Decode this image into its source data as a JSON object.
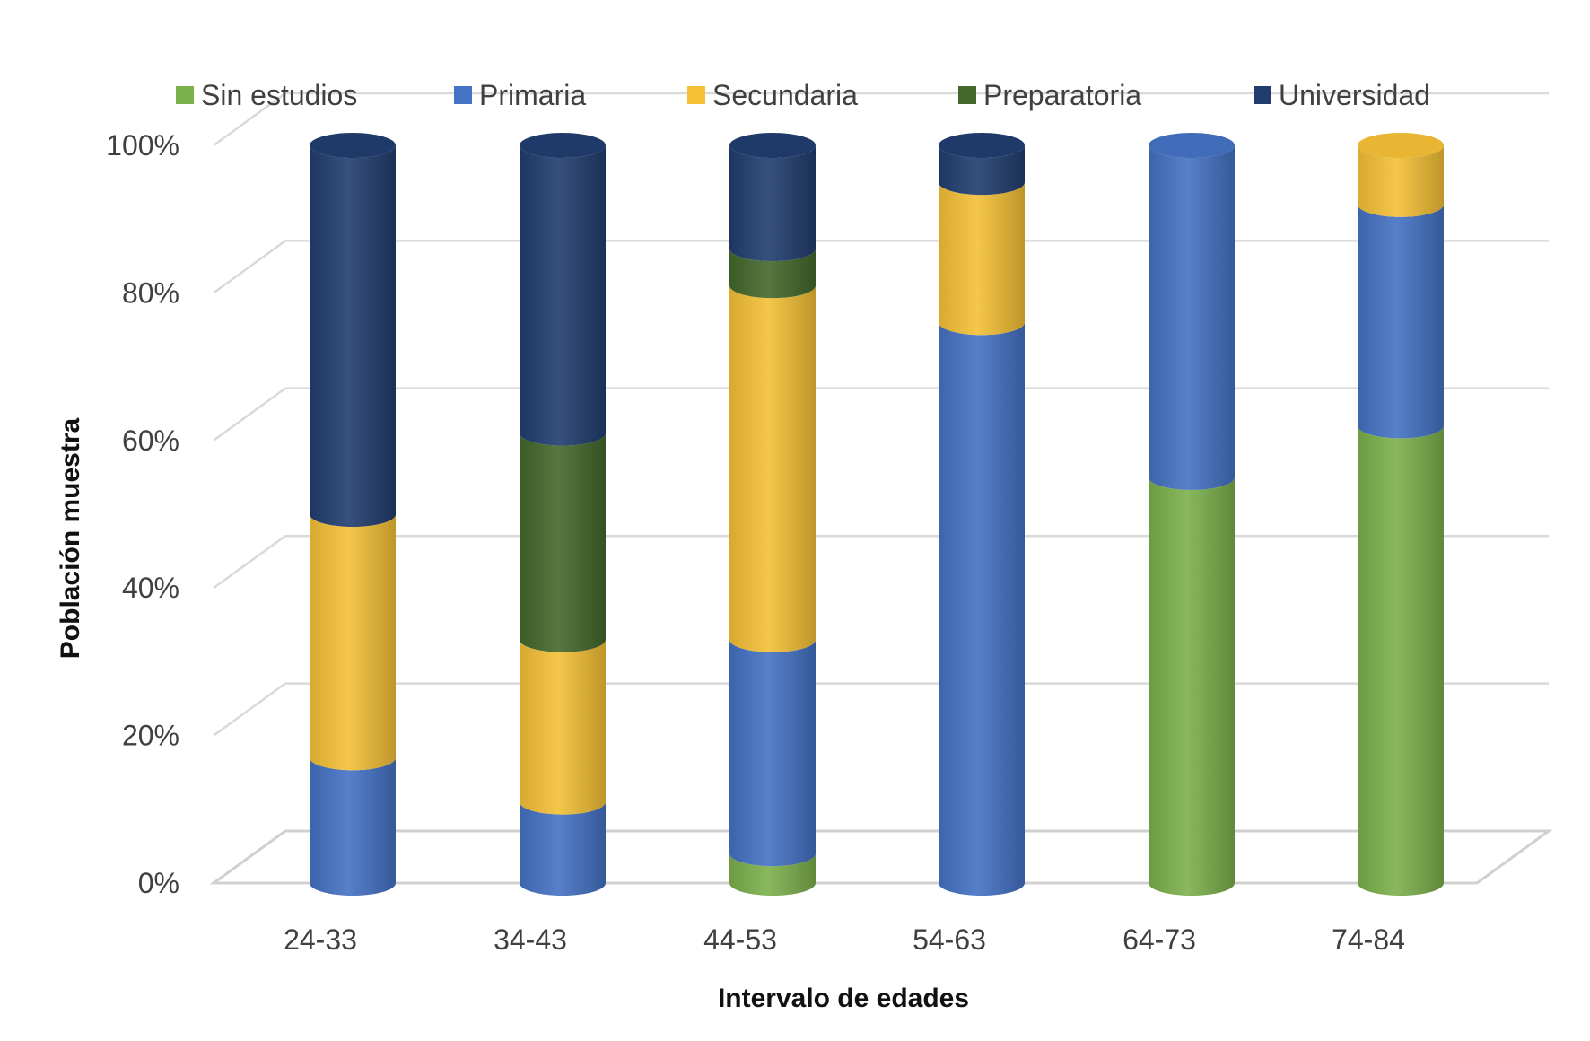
{
  "chart_data": {
    "type": "bar",
    "stacked": true,
    "style": "3d-cylinder",
    "xlabel": "Intervalo de edades",
    "ylabel": "Población muestra",
    "ylim": [
      0,
      100
    ],
    "yticks": [
      "0%",
      "20%",
      "40%",
      "60%",
      "80%",
      "100%"
    ],
    "categories": [
      "24-33",
      "34-43",
      "44-53",
      "54-63",
      "64-73",
      "74-84"
    ],
    "legend_position": "top",
    "series": [
      {
        "name": "Sin estudios",
        "color": "#7cb04c",
        "values": [
          0,
          0,
          4,
          0,
          55,
          62
        ]
      },
      {
        "name": "Primaria",
        "color": "#4472c4",
        "values": [
          17,
          11,
          29,
          76,
          45,
          30
        ]
      },
      {
        "name": "Secundaria",
        "color": "#f4c036",
        "values": [
          33,
          22,
          48,
          19,
          0,
          8
        ]
      },
      {
        "name": "Preparatoria",
        "color": "#43682b",
        "values": [
          0,
          28,
          5,
          0,
          0,
          0
        ]
      },
      {
        "name": "Universidad",
        "color": "#213d6e",
        "values": [
          50,
          39,
          14,
          5,
          0,
          0
        ]
      }
    ]
  }
}
